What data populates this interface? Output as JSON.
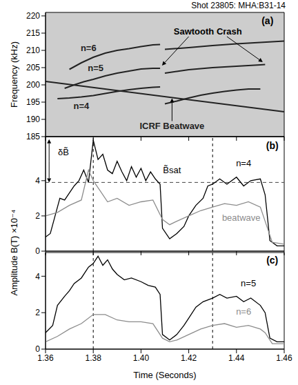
{
  "title": "Shot 23805: MHA:B31-14",
  "chart_data": [
    {
      "type": "line",
      "panel": "(a)",
      "ylabel": "Frequency (kHz)",
      "xlim": [
        1.36,
        1.46
      ],
      "xticks": [
        1.36,
        1.38,
        {
          "value": 1.4,
          "label": "1.40"
        },
        1.42,
        1.44,
        1.46
      ],
      "ylim": [
        185,
        221
      ],
      "yticks": [
        185,
        190,
        195,
        200,
        205,
        210,
        215,
        220
      ],
      "tick_labels": "y",
      "annotations": [
        "Sawtooth Crash"
      ],
      "series": [
        {
          "name": "n=6",
          "color": "#222222",
          "x": [
            1.37,
            1.375,
            1.38,
            1.385,
            1.39,
            1.395,
            1.4,
            1.405,
            1.408,
            1.409,
            1.41,
            1.42,
            1.43,
            1.44,
            1.45,
            1.46
          ],
          "values": [
            204.5,
            206.4,
            208.0,
            209.2,
            210.0,
            210.5,
            211.1,
            211.6,
            211.7,
            null,
            210.3,
            210.8,
            211.4,
            211.9,
            212.3,
            212.7
          ]
        },
        {
          "name": "n=5",
          "color": "#222222",
          "x": [
            1.368,
            1.372,
            1.376,
            1.38,
            1.385,
            1.39,
            1.395,
            1.4,
            1.405,
            1.408,
            1.409,
            1.41,
            1.415,
            1.42,
            1.43,
            1.44,
            1.45,
            1.452
          ],
          "values": [
            199.0,
            200.0,
            200.9,
            201.6,
            202.6,
            203.4,
            204.0,
            204.6,
            204.8,
            204.8,
            null,
            203.4,
            203.9,
            204.4,
            205.0,
            205.4,
            205.8,
            205.9
          ]
        },
        {
          "name": "n=4",
          "color": "#222222",
          "x": [
            1.365,
            1.37,
            1.375,
            1.38,
            1.385,
            1.39,
            1.395,
            1.4,
            1.405,
            1.408,
            1.409,
            1.41,
            1.415,
            1.42,
            1.425,
            1.43,
            1.435,
            1.44,
            1.445,
            1.45
          ],
          "values": [
            196.0,
            196.2,
            196.5,
            196.9,
            197.5,
            198.1,
            198.6,
            199.0,
            199.3,
            199.4,
            null,
            194.5,
            195.3,
            196.2,
            197.0,
            197.6,
            198.1,
            198.5,
            198.8,
            198.8
          ]
        },
        {
          "name": "ICRF Beatwave",
          "color": "#222222",
          "x": [
            1.36,
            1.46
          ],
          "values": [
            201.0,
            192.2
          ]
        }
      ]
    },
    {
      "type": "line",
      "panel": "(b)",
      "ylabel": "Amplitude B(T) ×10⁻⁴",
      "xlim": [
        1.36,
        1.46
      ],
      "xticks": [
        1.36,
        1.38,
        {
          "value": 1.4,
          "label": "1.40"
        },
        1.42,
        1.44,
        1.46
      ],
      "ylim": [
        0,
        6.5
      ],
      "yticks": [
        0,
        2,
        4
      ],
      "tick_labels": "y",
      "hlines": [
        3.9
      ],
      "vlines": [
        1.38,
        1.43
      ],
      "annotations": [
        "δB̃",
        "B̃sat"
      ],
      "series": [
        {
          "name": "n=4",
          "color": "#000000",
          "x": [
            1.36,
            1.362,
            1.364,
            1.366,
            1.368,
            1.37,
            1.372,
            1.374,
            1.376,
            1.378,
            1.38,
            1.382,
            1.384,
            1.386,
            1.388,
            1.39,
            1.392,
            1.394,
            1.396,
            1.398,
            1.4,
            1.402,
            1.404,
            1.406,
            1.408,
            1.409,
            1.412,
            1.415,
            1.418,
            1.42,
            1.423,
            1.426,
            1.428,
            1.43,
            1.433,
            1.436,
            1.44,
            1.443,
            1.446,
            1.45,
            1.452,
            1.454,
            1.457,
            1.46
          ],
          "values": [
            0.8,
            1.0,
            2.0,
            3.0,
            2.9,
            3.3,
            3.7,
            4.0,
            4.6,
            3.9,
            6.3,
            5.2,
            5.5,
            4.6,
            4.4,
            5.1,
            4.5,
            4.0,
            4.8,
            4.2,
            4.7,
            4.0,
            4.5,
            4.1,
            3.8,
            1.3,
            0.7,
            1.0,
            1.4,
            2.0,
            2.6,
            3.0,
            3.7,
            3.8,
            4.1,
            3.8,
            4.2,
            3.7,
            4.0,
            4.1,
            3.2,
            0.6,
            0.3,
            0.3
          ]
        },
        {
          "name": "beatwave",
          "color": "#8c8c8c",
          "x": [
            1.36,
            1.365,
            1.37,
            1.375,
            1.378,
            1.38,
            1.383,
            1.386,
            1.39,
            1.395,
            1.4,
            1.405,
            1.409,
            1.412,
            1.415,
            1.42,
            1.425,
            1.43,
            1.435,
            1.44,
            1.445,
            1.45,
            1.452,
            1.455,
            1.46
          ],
          "values": [
            2.0,
            2.2,
            2.6,
            2.9,
            4.6,
            4.0,
            3.4,
            2.8,
            3.0,
            2.6,
            2.8,
            2.9,
            1.8,
            1.5,
            1.7,
            2.0,
            2.3,
            2.5,
            2.7,
            2.6,
            2.8,
            2.5,
            1.7,
            0.5,
            0.4
          ]
        }
      ]
    },
    {
      "type": "line",
      "panel": "(c)",
      "xlabel": "Time (Seconds)",
      "xlim": [
        1.36,
        1.46
      ],
      "xticks": [
        1.36,
        1.38,
        {
          "value": 1.4,
          "label": "1.40"
        },
        1.42,
        1.44,
        1.46
      ],
      "ylim": [
        0,
        5.3
      ],
      "yticks": [
        0,
        2,
        4
      ],
      "vlines": [
        1.38,
        1.43
      ],
      "series": [
        {
          "name": "n=5",
          "color": "#000000",
          "x": [
            1.36,
            1.363,
            1.365,
            1.368,
            1.37,
            1.372,
            1.375,
            1.378,
            1.38,
            1.382,
            1.384,
            1.386,
            1.388,
            1.39,
            1.393,
            1.396,
            1.4,
            1.403,
            1.406,
            1.408,
            1.409,
            1.412,
            1.415,
            1.418,
            1.42,
            1.423,
            1.426,
            1.43,
            1.433,
            1.436,
            1.44,
            1.443,
            1.446,
            1.45,
            1.452,
            1.454,
            1.457,
            1.46
          ],
          "values": [
            0.9,
            1.3,
            2.4,
            2.9,
            3.2,
            3.6,
            3.9,
            4.5,
            4.7,
            5.1,
            4.6,
            4.9,
            4.4,
            4.1,
            3.8,
            3.9,
            3.7,
            3.5,
            3.4,
            3.0,
            0.8,
            0.5,
            0.8,
            1.3,
            1.7,
            2.3,
            2.6,
            2.8,
            3.0,
            2.8,
            2.9,
            2.6,
            2.8,
            2.4,
            2.0,
            0.6,
            0.4,
            0.4
          ]
        },
        {
          "name": "n=6",
          "color": "#8c8c8c",
          "x": [
            1.36,
            1.365,
            1.37,
            1.375,
            1.38,
            1.385,
            1.39,
            1.395,
            1.4,
            1.405,
            1.409,
            1.412,
            1.415,
            1.42,
            1.425,
            1.43,
            1.435,
            1.44,
            1.445,
            1.45,
            1.452,
            1.455,
            1.46
          ],
          "values": [
            0.4,
            0.7,
            1.1,
            1.4,
            1.9,
            1.9,
            1.6,
            1.5,
            1.5,
            1.4,
            0.6,
            0.4,
            0.5,
            0.8,
            1.1,
            1.3,
            1.4,
            1.2,
            1.3,
            1.1,
            0.9,
            0.3,
            0.3
          ]
        }
      ]
    }
  ]
}
